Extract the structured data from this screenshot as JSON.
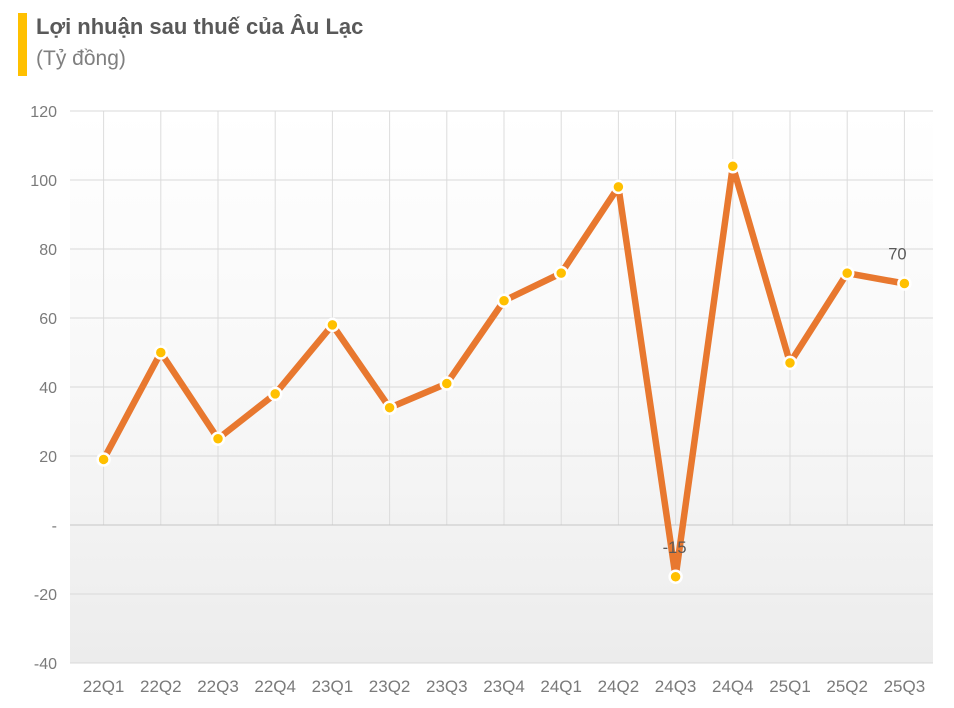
{
  "header": {
    "title": "Lợi nhuận sau thuế của Âu Lạc",
    "subtitle": "(Tỷ đồng)",
    "accent_color": "#FFC000"
  },
  "chart_data": {
    "type": "line",
    "title": "Lợi nhuận sau thuế của Âu Lạc",
    "subtitle": "(Tỷ đồng)",
    "categories": [
      "22Q1",
      "22Q2",
      "22Q3",
      "22Q4",
      "23Q1",
      "23Q2",
      "23Q3",
      "23Q4",
      "24Q1",
      "24Q2",
      "24Q3",
      "24Q4",
      "25Q1",
      "25Q2",
      "25Q3"
    ],
    "values": [
      19,
      50,
      25,
      38,
      58,
      34,
      41,
      65,
      73,
      98,
      -15,
      104,
      47,
      73,
      70
    ],
    "ylim": [
      -40,
      120
    ],
    "y_ticks": [
      {
        "value": 120,
        "label": "120"
      },
      {
        "value": 100,
        "label": "100"
      },
      {
        "value": 80,
        "label": "80"
      },
      {
        "value": 60,
        "label": "60"
      },
      {
        "value": 40,
        "label": "40"
      },
      {
        "value": 20,
        "label": "20"
      },
      {
        "value": 0,
        "label": "-"
      },
      {
        "value": -20,
        "label": "-20"
      },
      {
        "value": -40,
        "label": "-40"
      }
    ],
    "point_labels": [
      {
        "index": 10,
        "text": "-15",
        "dx": -1,
        "dy": 0
      },
      {
        "index": 14,
        "text": "70",
        "dx": -7,
        "dy": 0
      }
    ],
    "grid": true,
    "legend": "none",
    "colors": {
      "line": "#E8782F",
      "marker": "#FFC000",
      "marker_ring": "#FFFFFF",
      "gridline": "#D9D9D9",
      "vertical_gridline": "#DCDCDC",
      "zero_line": "#C6C6C6",
      "axis_text": "#7A7A7A",
      "label_text": "#595959",
      "title_text": "#595959",
      "subtitle_text": "#7F7F7F",
      "accent": "#FFC000"
    }
  }
}
